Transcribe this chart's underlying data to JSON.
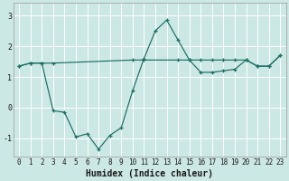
{
  "xlabel": "Humidex (Indice chaleur)",
  "bg_color": "#cce8e4",
  "grid_color": "#ffffff",
  "line_color": "#1a6e64",
  "xlim": [
    -0.5,
    23.5
  ],
  "ylim": [
    -1.6,
    3.4
  ],
  "yticks": [
    -1,
    0,
    1,
    2,
    3
  ],
  "xticks": [
    0,
    1,
    2,
    3,
    4,
    5,
    6,
    7,
    8,
    9,
    10,
    11,
    12,
    13,
    14,
    15,
    16,
    17,
    18,
    19,
    20,
    21,
    22,
    23
  ],
  "line1_x": [
    0,
    1,
    2,
    3,
    4,
    5,
    6,
    7,
    8,
    9,
    10,
    11,
    12,
    13,
    14,
    15,
    16,
    17,
    18,
    19,
    20,
    21,
    22,
    23
  ],
  "line1_y": [
    1.35,
    1.45,
    1.45,
    -0.1,
    -0.15,
    -0.95,
    -0.85,
    -1.35,
    -0.9,
    -0.65,
    0.55,
    1.6,
    2.5,
    2.85,
    2.2,
    1.55,
    1.15,
    1.15,
    1.2,
    1.25,
    1.55,
    1.35,
    1.35,
    1.7
  ],
  "line2_x": [
    0,
    1,
    2,
    3,
    10,
    11,
    14,
    15,
    16,
    17,
    18,
    19,
    20,
    21,
    22,
    23
  ],
  "line2_y": [
    1.35,
    1.45,
    1.45,
    1.45,
    1.55,
    1.55,
    1.55,
    1.55,
    1.55,
    1.55,
    1.55,
    1.55,
    1.55,
    1.35,
    1.35,
    1.7
  ],
  "xlabel_fontsize": 7,
  "tick_fontsize": 5.5
}
